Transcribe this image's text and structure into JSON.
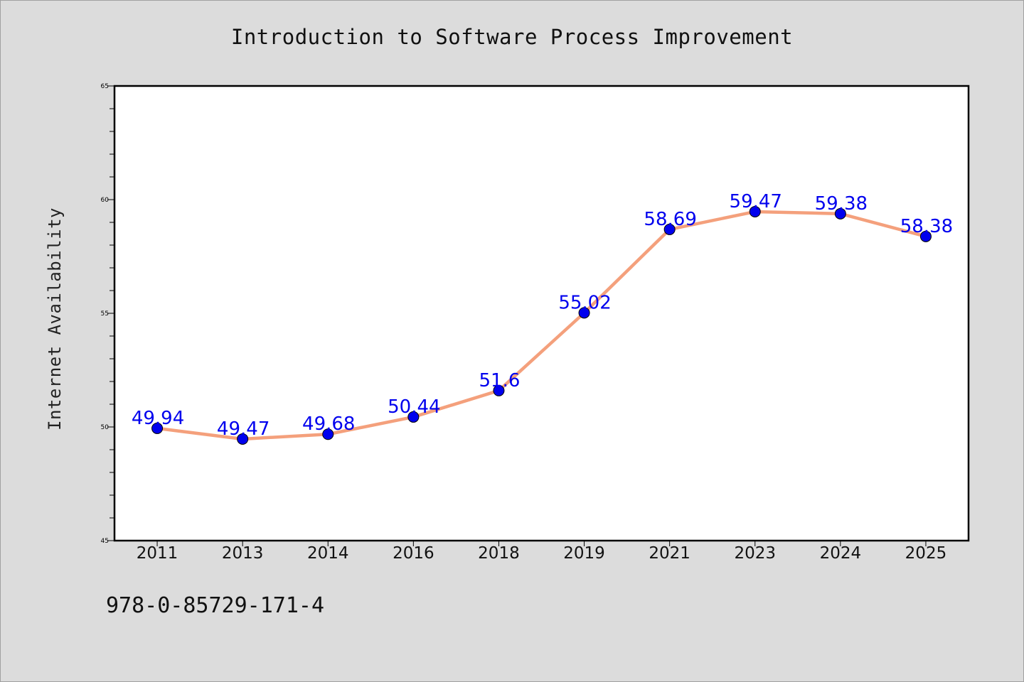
{
  "chart_data": {
    "type": "line",
    "title": "Introduction to Software Process Improvement",
    "xlabel": "",
    "ylabel": "Internet Availability",
    "categories": [
      "2011",
      "2013",
      "2014",
      "2016",
      "2018",
      "2019",
      "2021",
      "2023",
      "2024",
      "2025"
    ],
    "series": [
      {
        "values": [
          49.94,
          49.47,
          49.68,
          50.44,
          51.6,
          55.02,
          58.69,
          59.47,
          59.38,
          58.38
        ],
        "labels": [
          "49.94",
          "49.47",
          "49.68",
          "50.44",
          "51.6",
          "55.02",
          "58.69",
          "59.47",
          "59.38",
          "58.38"
        ],
        "line_color": "#f4a07c",
        "marker_color": "#0000ee"
      }
    ],
    "ylim": [
      45,
      65
    ],
    "yticks": [
      "45",
      "50",
      "55",
      "60",
      "65"
    ],
    "grid": false,
    "legend": "none",
    "data_label_color": "#0000ee",
    "plot_background": "#ffffff"
  },
  "footer": {
    "isbn": "978-0-85729-171-4"
  }
}
